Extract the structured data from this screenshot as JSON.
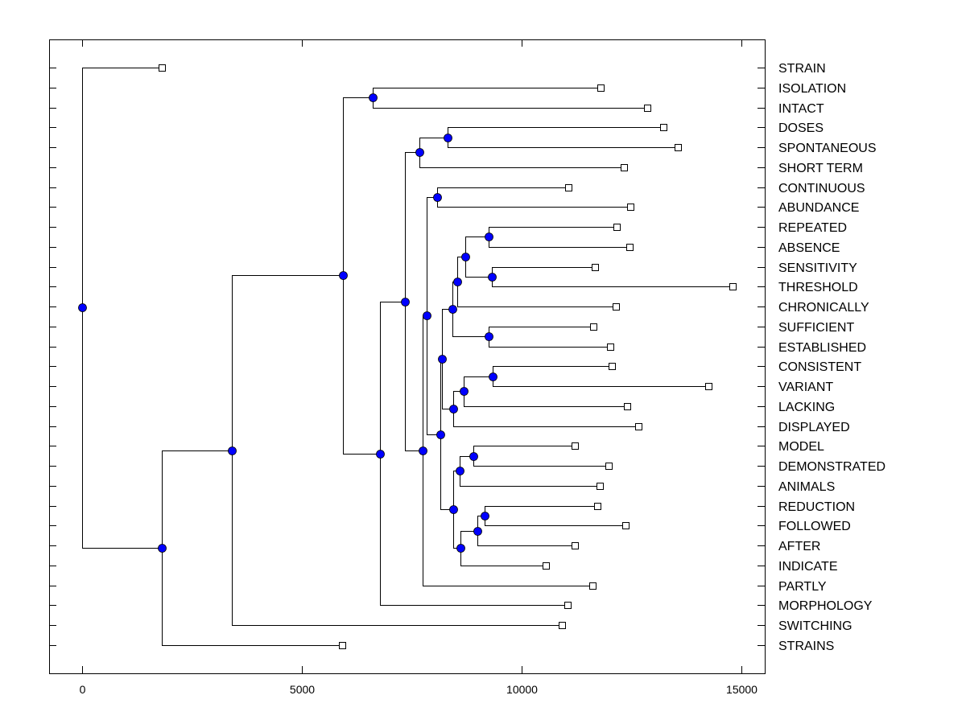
{
  "chart_data": {
    "type": "dendrogram",
    "title": "",
    "xlabel": "",
    "ylabel": "",
    "xlim": [
      -750,
      15550
    ],
    "x_ticks": [
      0,
      5000,
      10000,
      15000
    ],
    "x_tick_labels": [
      "0",
      "5000",
      "10000",
      "15000"
    ],
    "grid": false,
    "node_marker_color": "#0000ff",
    "leaf_marker": "open-square",
    "leaves": [
      {
        "id": "STRAIN",
        "label": "STRAIN",
        "value": 1813
      },
      {
        "id": "ISOLATION",
        "label": "ISOLATION",
        "value": 11795
      },
      {
        "id": "INTACT",
        "label": "INTACT",
        "value": 12857
      },
      {
        "id": "DOSES",
        "label": "DOSES",
        "value": 13223
      },
      {
        "id": "SPONTANEOUS",
        "label": "SPONTANEOUS",
        "value": 13553
      },
      {
        "id": "SHORT_TERM",
        "label": "SHORT TERM",
        "value": 12326
      },
      {
        "id": "CONTINUOUS",
        "label": "CONTINUOUS",
        "value": 11062
      },
      {
        "id": "ABUNDANCE",
        "label": "ABUNDANCE",
        "value": 12473
      },
      {
        "id": "REPEATED",
        "label": "REPEATED",
        "value": 12161
      },
      {
        "id": "ABSENCE",
        "label": "ABSENCE",
        "value": 12454
      },
      {
        "id": "SENSITIVITY",
        "label": "SENSITIVITY",
        "value": 11667
      },
      {
        "id": "THRESHOLD",
        "label": "THRESHOLD",
        "value": 14799
      },
      {
        "id": "CHRONICALLY",
        "label": "CHRONICALLY",
        "value": 12143
      },
      {
        "id": "SUFFICIENT",
        "label": "SUFFICIENT",
        "value": 11630
      },
      {
        "id": "ESTABLISHED",
        "label": "ESTABLISHED",
        "value": 12015
      },
      {
        "id": "CONSISTENT",
        "label": "CONSISTENT",
        "value": 12051
      },
      {
        "id": "VARIANT",
        "label": "VARIANT",
        "value": 14249
      },
      {
        "id": "LACKING",
        "label": "LACKING",
        "value": 12399
      },
      {
        "id": "DISPLAYED",
        "label": "DISPLAYED",
        "value": 12656
      },
      {
        "id": "MODEL",
        "label": "MODEL",
        "value": 11209
      },
      {
        "id": "DEMONSTRATED",
        "label": "DEMONSTRATED",
        "value": 11978
      },
      {
        "id": "ANIMALS",
        "label": "ANIMALS",
        "value": 11777
      },
      {
        "id": "REDUCTION",
        "label": "REDUCTION",
        "value": 11722
      },
      {
        "id": "FOLLOWED",
        "label": "FOLLOWED",
        "value": 12363
      },
      {
        "id": "AFTER",
        "label": "AFTER",
        "value": 11209
      },
      {
        "id": "INDICATE",
        "label": "INDICATE",
        "value": 10549
      },
      {
        "id": "PARTLY",
        "label": "PARTLY",
        "value": 11612
      },
      {
        "id": "MORPHOLOGY",
        "label": "MORPHOLOGY",
        "value": 11044
      },
      {
        "id": "SWITCHING",
        "label": "SWITCHING",
        "value": 10916
      },
      {
        "id": "STRAINS",
        "label": "STRAINS",
        "value": 5916
      }
    ],
    "nodes": [
      {
        "id": "n1",
        "value": 6612,
        "children": [
          "ISOLATION",
          "INTACT"
        ]
      },
      {
        "id": "n2",
        "value": 8315,
        "children": [
          "DOSES",
          "SPONTANEOUS"
        ]
      },
      {
        "id": "n3",
        "value": 7674,
        "children": [
          "n2",
          "SHORT_TERM"
        ]
      },
      {
        "id": "n4",
        "value": 8077,
        "children": [
          "CONTINUOUS",
          "ABUNDANCE"
        ]
      },
      {
        "id": "n5",
        "value": 9249,
        "children": [
          "REPEATED",
          "ABSENCE"
        ]
      },
      {
        "id": "n6",
        "value": 9322,
        "children": [
          "SENSITIVITY",
          "THRESHOLD"
        ]
      },
      {
        "id": "n7",
        "value": 8718,
        "children": [
          "n5",
          "n6"
        ]
      },
      {
        "id": "n8",
        "value": 8535,
        "children": [
          "n7",
          "CHRONICALLY"
        ]
      },
      {
        "id": "n10",
        "value": 9249,
        "children": [
          "SUFFICIENT",
          "ESTABLISHED"
        ]
      },
      {
        "id": "n9",
        "value": 8425,
        "children": [
          "n8",
          "n10"
        ]
      },
      {
        "id": "n11",
        "value": 9341,
        "children": [
          "CONSISTENT",
          "VARIANT"
        ]
      },
      {
        "id": "n12",
        "value": 8681,
        "children": [
          "n11",
          "LACKING"
        ]
      },
      {
        "id": "n13",
        "value": 8443,
        "children": [
          "n12",
          "DISPLAYED"
        ]
      },
      {
        "id": "n14",
        "value": 8187,
        "children": [
          "n9",
          "n13"
        ]
      },
      {
        "id": "n24",
        "value": 8901,
        "children": [
          "MODEL",
          "DEMONSTRATED"
        ]
      },
      {
        "id": "n25",
        "value": 8590,
        "children": [
          "n24",
          "ANIMALS"
        ]
      },
      {
        "id": "n26",
        "value": 9158,
        "children": [
          "REDUCTION",
          "FOLLOWED"
        ]
      },
      {
        "id": "n27",
        "value": 8993,
        "children": [
          "n26",
          "AFTER"
        ]
      },
      {
        "id": "n28",
        "value": 8608,
        "children": [
          "n27",
          "INDICATE"
        ]
      },
      {
        "id": "n20",
        "value": 8443,
        "children": [
          "n25",
          "n28"
        ]
      },
      {
        "id": "n15",
        "value": 8150,
        "children": [
          "n14",
          "n20"
        ]
      },
      {
        "id": "n16",
        "value": 7839,
        "children": [
          "n4",
          "n15"
        ]
      },
      {
        "id": "n17",
        "value": 7747,
        "children": [
          "n16",
          "PARTLY"
        ]
      },
      {
        "id": "n18",
        "value": 7344,
        "children": [
          "n3",
          "n17"
        ]
      },
      {
        "id": "n19",
        "value": 6777,
        "children": [
          "n18",
          "MORPHOLOGY"
        ]
      },
      {
        "id": "n21",
        "value": 5934,
        "children": [
          "n1",
          "n19"
        ]
      },
      {
        "id": "n22",
        "value": 3407,
        "children": [
          "n21",
          "SWITCHING"
        ]
      },
      {
        "id": "n23",
        "value": 1813,
        "children": [
          "n22",
          "STRAINS"
        ]
      },
      {
        "id": "root",
        "value": 0,
        "children": [
          "STRAIN",
          "n23"
        ]
      }
    ]
  }
}
